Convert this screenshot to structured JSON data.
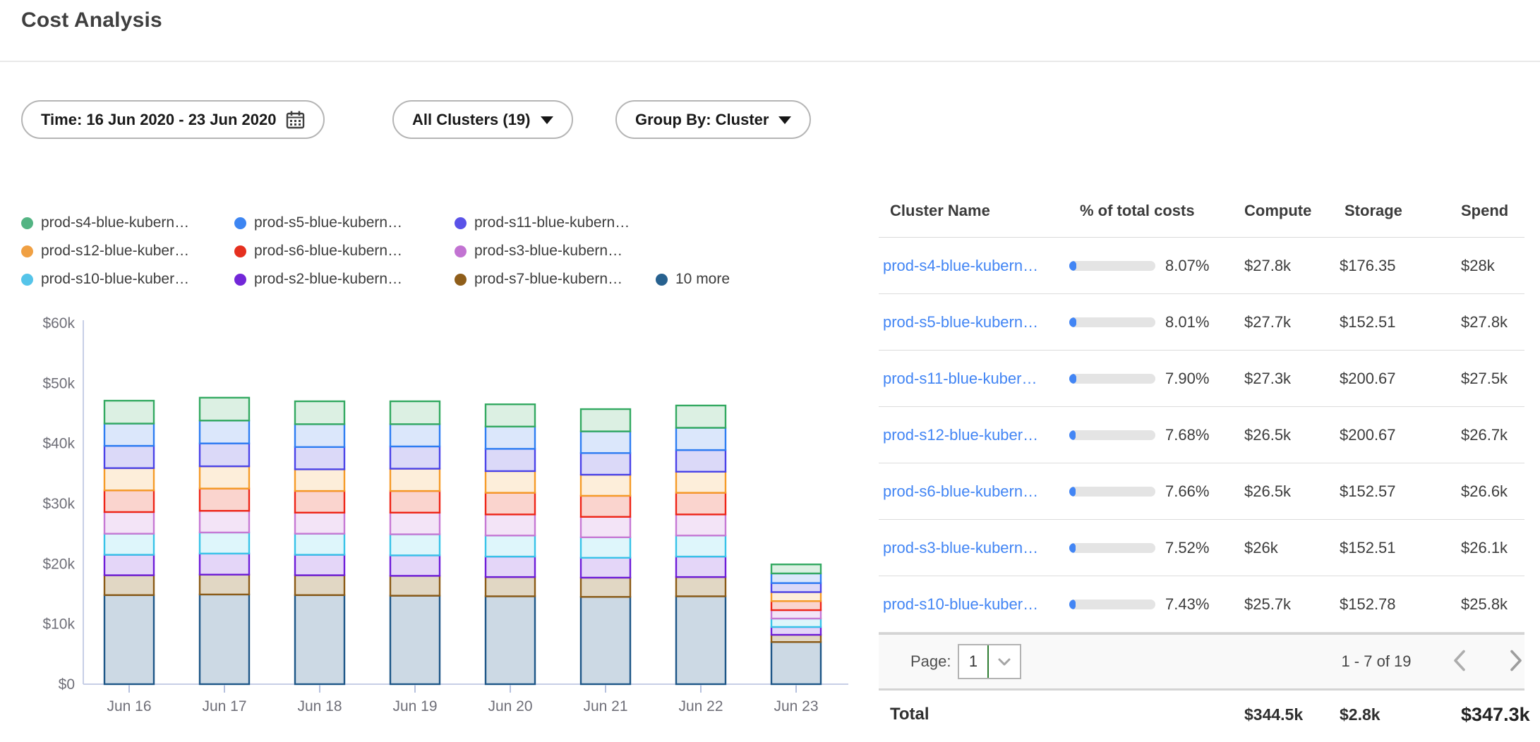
{
  "header": {
    "title": "Cost Analysis"
  },
  "filters": {
    "time": {
      "label": "Time: 16 Jun 2020 - 23 Jun 2020",
      "icon": "calendar-icon"
    },
    "clusters": {
      "label": "All Clusters (19)"
    },
    "group_by": {
      "label": "Group By: Cluster"
    }
  },
  "chart_data": {
    "type": "bar",
    "stacked": true,
    "title": "",
    "xlabel": "",
    "ylabel": "",
    "ylim": [
      0,
      60000
    ],
    "y_tick_labels": [
      "$0",
      "$10k",
      "$20k",
      "$30k",
      "$40k",
      "$50k",
      "$60k"
    ],
    "grid": false,
    "legend_position": "top",
    "categories": [
      "Jun 16",
      "Jun 17",
      "Jun 18",
      "Jun 19",
      "Jun 20",
      "Jun 21",
      "Jun 22",
      "Jun 23"
    ],
    "units": "USD thousands",
    "series": [
      {
        "name": "prod-s4-blue-kubern…",
        "dot": "#53b483",
        "stroke": "#33a961",
        "fill": "#dcf0e3",
        "values_k": [
          3.8,
          3.8,
          3.8,
          3.8,
          3.7,
          3.7,
          3.7,
          1.5
        ]
      },
      {
        "name": "prod-s5-blue-kubern…",
        "dot": "#3d85f2",
        "stroke": "#2e7df2",
        "fill": "#dbe7fb",
        "values_k": [
          3.7,
          3.8,
          3.8,
          3.7,
          3.7,
          3.6,
          3.7,
          1.6
        ]
      },
      {
        "name": "prod-s11-blue-kubern…",
        "dot": "#5a52e8",
        "stroke": "#4a43e8",
        "fill": "#dbd9f8",
        "values_k": [
          3.7,
          3.8,
          3.7,
          3.7,
          3.7,
          3.6,
          3.6,
          1.5
        ]
      },
      {
        "name": "prod-s12-blue-kuber…",
        "dot": "#f0a043",
        "stroke": "#f59b28",
        "fill": "#fdeeda",
        "values_k": [
          3.7,
          3.7,
          3.6,
          3.7,
          3.6,
          3.5,
          3.5,
          1.5
        ]
      },
      {
        "name": "prod-s6-blue-kubern…",
        "dot": "#e5301f",
        "stroke": "#ee2517",
        "fill": "#fad4ce",
        "values_k": [
          3.6,
          3.7,
          3.6,
          3.6,
          3.6,
          3.5,
          3.6,
          1.5
        ]
      },
      {
        "name": "prod-s3-blue-kubern…",
        "dot": "#c273d2",
        "stroke": "#c679d4",
        "fill": "#f3e4f7",
        "values_k": [
          3.6,
          3.6,
          3.5,
          3.6,
          3.5,
          3.4,
          3.5,
          1.4
        ]
      },
      {
        "name": "prod-s10-blue-kuber…",
        "dot": "#55c4e9",
        "stroke": "#38c2e8",
        "fill": "#def6fb",
        "values_k": [
          3.5,
          3.5,
          3.5,
          3.5,
          3.5,
          3.4,
          3.5,
          1.4
        ]
      },
      {
        "name": "prod-s2-blue-kubern…",
        "dot": "#7227d8",
        "stroke": "#6d1dd8",
        "fill": "#e4d6f8",
        "values_k": [
          3.4,
          3.5,
          3.4,
          3.4,
          3.4,
          3.3,
          3.4,
          1.3
        ]
      },
      {
        "name": "prod-s7-blue-kubern…",
        "dot": "#8f5e1a",
        "stroke": "#8a5a16",
        "fill": "#e1d7c4",
        "values_k": [
          3.3,
          3.3,
          3.3,
          3.3,
          3.2,
          3.2,
          3.2,
          1.2
        ]
      },
      {
        "name": "10 more",
        "dot": "#27618f",
        "stroke": "#1d5687",
        "fill": "#ccd9e4",
        "values_k": [
          14.8,
          14.9,
          14.8,
          14.7,
          14.6,
          14.5,
          14.6,
          7.0
        ]
      }
    ]
  },
  "table": {
    "columns": [
      "Cluster Name",
      "% of total costs",
      "Compute",
      "Storage",
      "Spend"
    ],
    "rows": [
      {
        "name": "prod-s4-blue-kubern…",
        "pct": "8.07%",
        "pct_value": 8.07,
        "compute": "$27.8k",
        "storage": "$176.35",
        "spend": "$28k"
      },
      {
        "name": "prod-s5-blue-kubern…",
        "pct": "8.01%",
        "pct_value": 8.01,
        "compute": "$27.7k",
        "storage": "$152.51",
        "spend": "$27.8k"
      },
      {
        "name": "prod-s11-blue-kuber…",
        "pct": "7.90%",
        "pct_value": 7.9,
        "compute": "$27.3k",
        "storage": "$200.67",
        "spend": "$27.5k"
      },
      {
        "name": "prod-s12-blue-kuber…",
        "pct": "7.68%",
        "pct_value": 7.68,
        "compute": "$26.5k",
        "storage": "$200.67",
        "spend": "$26.7k"
      },
      {
        "name": "prod-s6-blue-kubern…",
        "pct": "7.66%",
        "pct_value": 7.66,
        "compute": "$26.5k",
        "storage": "$152.57",
        "spend": "$26.6k"
      },
      {
        "name": "prod-s3-blue-kubern…",
        "pct": "7.52%",
        "pct_value": 7.52,
        "compute": "$26k",
        "storage": "$152.51",
        "spend": "$26.1k"
      },
      {
        "name": "prod-s10-blue-kuber…",
        "pct": "7.43%",
        "pct_value": 7.43,
        "compute": "$25.7k",
        "storage": "$152.78",
        "spend": "$25.8k"
      }
    ],
    "pagination": {
      "label": "Page:",
      "page": "1",
      "range": "1 - 7 of 19"
    },
    "total": {
      "label": "Total",
      "compute": "$344.5k",
      "storage": "$2.8k",
      "spend": "$347.3k"
    }
  }
}
